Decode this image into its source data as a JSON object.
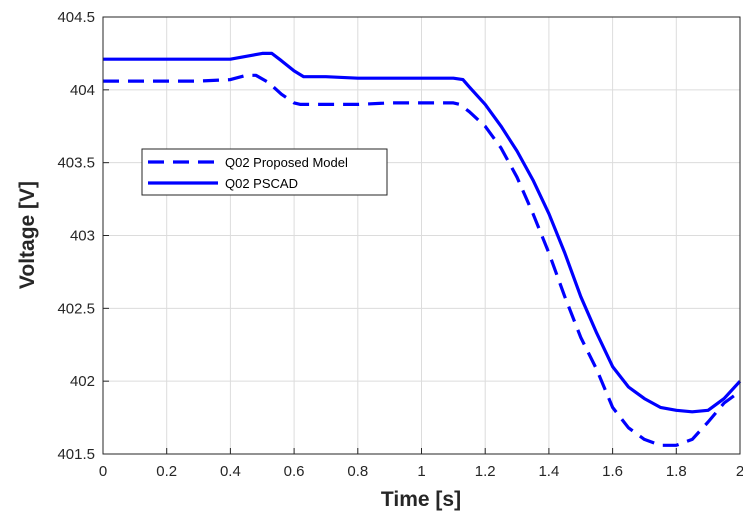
{
  "chart_data": {
    "type": "line",
    "title": "",
    "xlabel": "Time [s]",
    "ylabel": "Voltage [V]",
    "xlim": [
      0,
      2
    ],
    "ylim": [
      401.5,
      404.5
    ],
    "x_ticks": [
      "0",
      "0.2",
      "0.4",
      "0.6",
      "0.8",
      "1",
      "1.2",
      "1.4",
      "1.6",
      "1.8",
      "2"
    ],
    "y_ticks": [
      "401.5",
      "402",
      "402.5",
      "403",
      "403.5",
      "404",
      "404.5"
    ],
    "grid": true,
    "legend_position": "middle-left",
    "series": [
      {
        "name": "Q02 Proposed Model",
        "style": "dashed",
        "color": "#0000ff",
        "x": [
          0,
          0.1,
          0.2,
          0.3,
          0.4,
          0.45,
          0.48,
          0.52,
          0.56,
          0.6,
          0.62,
          0.7,
          0.8,
          0.9,
          1.0,
          1.1,
          1.12,
          1.15,
          1.2,
          1.25,
          1.3,
          1.35,
          1.4,
          1.45,
          1.5,
          1.55,
          1.6,
          1.65,
          1.7,
          1.75,
          1.8,
          1.85,
          1.9,
          1.95,
          2.0
        ],
        "y": [
          404.06,
          404.06,
          404.06,
          404.06,
          404.07,
          404.1,
          404.1,
          404.05,
          403.97,
          403.91,
          403.9,
          403.9,
          403.9,
          403.91,
          403.91,
          403.91,
          403.9,
          403.85,
          403.75,
          403.6,
          403.4,
          403.15,
          402.88,
          402.58,
          402.3,
          402.08,
          401.82,
          401.68,
          401.6,
          401.56,
          401.56,
          401.6,
          401.72,
          401.85,
          401.93
        ]
      },
      {
        "name": "Q02 PSCAD",
        "style": "solid",
        "color": "#0000ff",
        "x": [
          0,
          0.1,
          0.2,
          0.3,
          0.4,
          0.45,
          0.5,
          0.53,
          0.56,
          0.6,
          0.63,
          0.7,
          0.8,
          0.9,
          1.0,
          1.1,
          1.13,
          1.15,
          1.2,
          1.25,
          1.3,
          1.35,
          1.4,
          1.45,
          1.5,
          1.55,
          1.6,
          1.65,
          1.7,
          1.75,
          1.8,
          1.85,
          1.9,
          1.95,
          2.0
        ],
        "y": [
          404.21,
          404.21,
          404.21,
          404.21,
          404.21,
          404.23,
          404.25,
          404.25,
          404.2,
          404.13,
          404.09,
          404.09,
          404.08,
          404.08,
          404.08,
          404.08,
          404.07,
          404.02,
          403.9,
          403.75,
          403.58,
          403.38,
          403.15,
          402.88,
          402.58,
          402.33,
          402.1,
          401.96,
          401.88,
          401.82,
          401.8,
          401.79,
          401.8,
          401.88,
          402.0
        ]
      }
    ]
  }
}
